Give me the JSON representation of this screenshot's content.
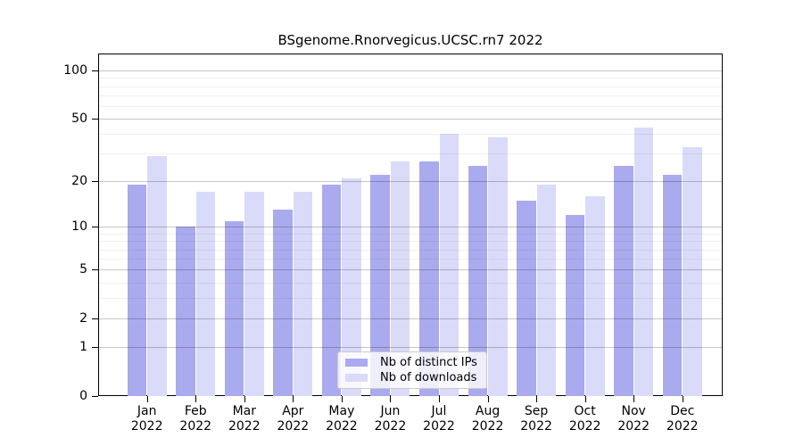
{
  "chart_data": {
    "type": "bar",
    "title": "BSgenome.Rnorvegicus.UCSC.rn7 2022",
    "categories": [
      "Jan",
      "Feb",
      "Mar",
      "Apr",
      "May",
      "Jun",
      "Jul",
      "Aug",
      "Sep",
      "Oct",
      "Nov",
      "Dec"
    ],
    "year": "2022",
    "series": [
      {
        "name": "Nb of distinct IPs",
        "color": "#aaaaee",
        "values": [
          19,
          10,
          11,
          13,
          19,
          22,
          27,
          25,
          15,
          12,
          25,
          22
        ]
      },
      {
        "name": "Nb of downloads",
        "color": "#dadaf9",
        "values": [
          29,
          17,
          17,
          17,
          21,
          27,
          40,
          38,
          19,
          16,
          44,
          33
        ]
      }
    ],
    "y_scale": "log10(1+x)",
    "y_major_ticks": [
      0,
      1,
      2,
      5,
      10,
      20,
      50,
      100
    ],
    "y_minor_gridlines": [
      3,
      4,
      6,
      7,
      8,
      9,
      30,
      40,
      60,
      70,
      80,
      90
    ],
    "grid": true,
    "legend_position": "lower center"
  }
}
